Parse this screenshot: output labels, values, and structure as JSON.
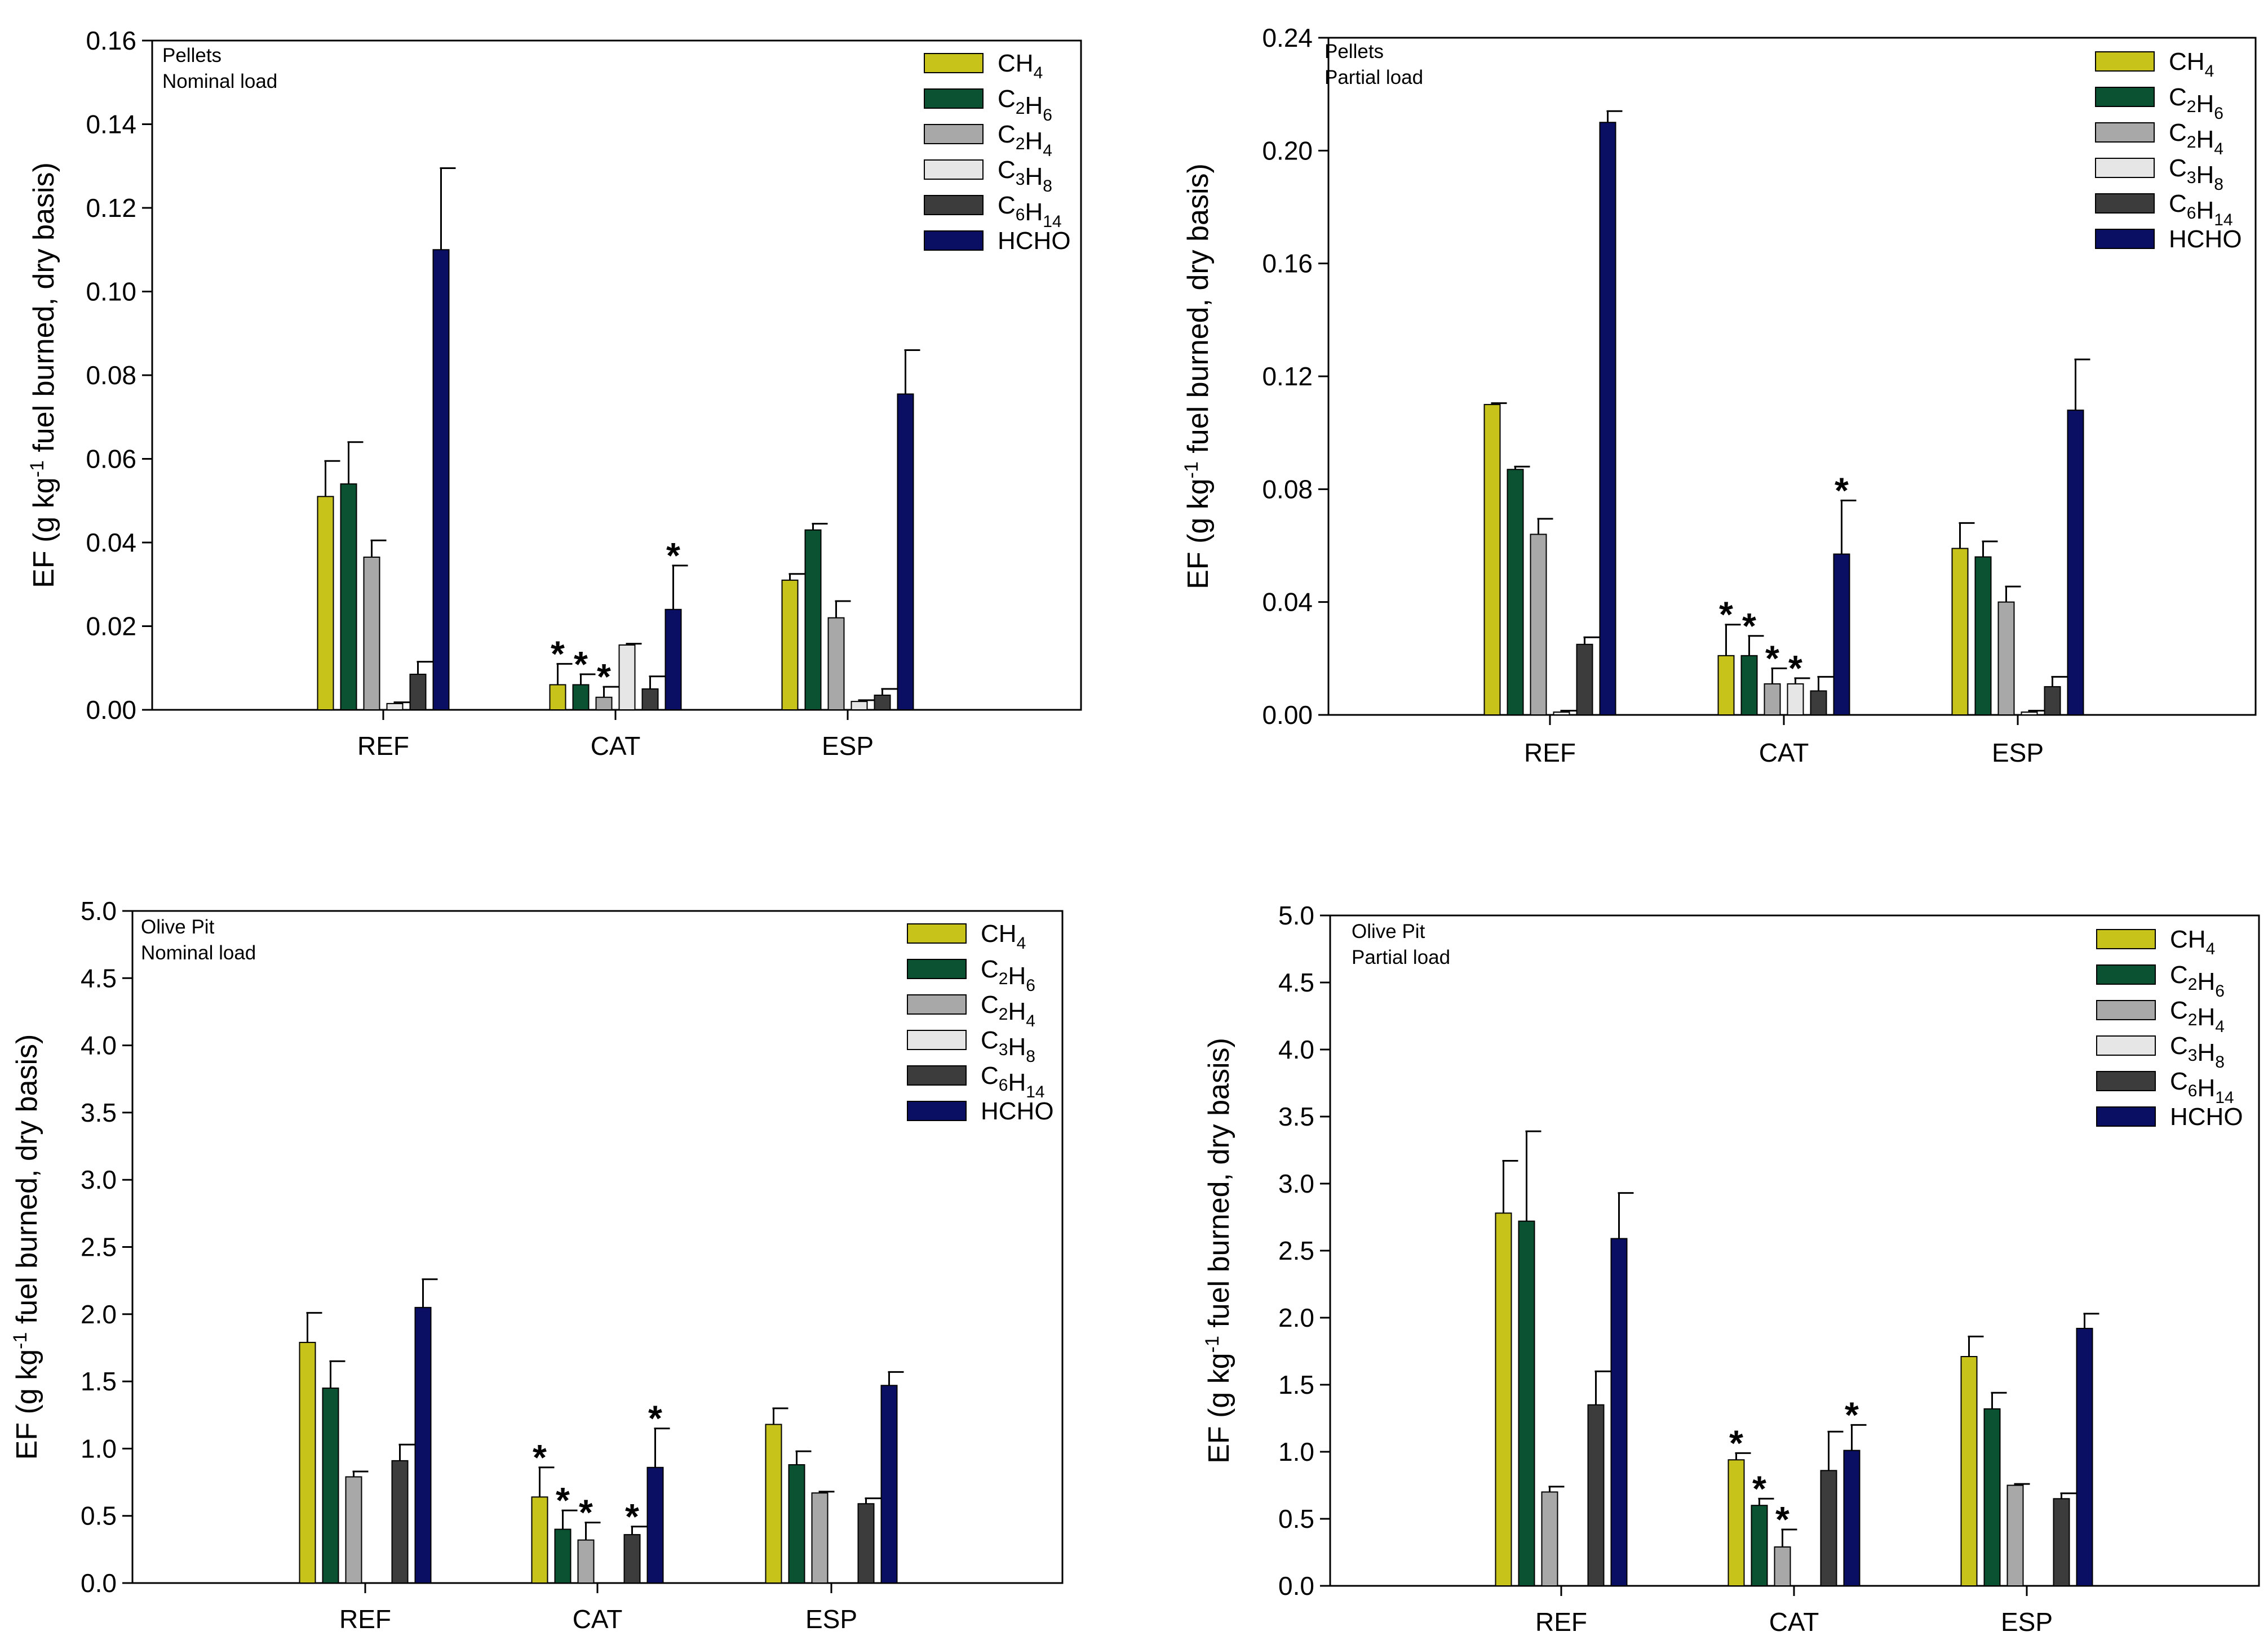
{
  "chart_data": [
    {
      "type": "bar",
      "title": "",
      "annotation": [
        "Pellets",
        "Nominal load"
      ],
      "ylabel": "EF (g kg-1 fuel burned, dry basis)",
      "ylim": [
        0,
        0.16
      ],
      "yticks": [
        0.0,
        0.02,
        0.04,
        0.06,
        0.08,
        0.1,
        0.12,
        0.14,
        0.16
      ],
      "ytick_labels": [
        "0.00",
        "0.02",
        "0.04",
        "0.06",
        "0.08",
        "0.10",
        "0.12",
        "0.14",
        "0.16"
      ],
      "categories": [
        "REF",
        "CAT",
        "ESP"
      ],
      "series": [
        {
          "name": "CH4",
          "values": [
            0.051,
            0.006,
            0.031
          ],
          "errors": [
            0.0085,
            0.005,
            0.0015
          ],
          "significant": [
            false,
            true,
            false
          ]
        },
        {
          "name": "C2H6",
          "values": [
            0.054,
            0.006,
            0.043
          ],
          "errors": [
            0.01,
            0.0025,
            0.0015
          ],
          "significant": [
            false,
            true,
            false
          ]
        },
        {
          "name": "C2H4",
          "values": [
            0.0365,
            0.003,
            0.022
          ],
          "errors": [
            0.004,
            0.0025,
            0.004
          ],
          "significant": [
            false,
            true,
            false
          ]
        },
        {
          "name": "C3H8",
          "values": [
            0.0015,
            0.0155,
            0.002
          ],
          "errors": [
            0.0003,
            0.0003,
            0.0003
          ],
          "significant": [
            false,
            false,
            false
          ]
        },
        {
          "name": "C6H14",
          "values": [
            0.0085,
            0.005,
            0.0035
          ],
          "errors": [
            0.003,
            0.003,
            0.0015
          ],
          "significant": [
            false,
            false,
            false
          ]
        },
        {
          "name": "HCHO",
          "values": [
            0.11,
            0.024,
            0.0755
          ],
          "errors": [
            0.0195,
            0.0105,
            0.0105
          ],
          "significant": [
            false,
            true,
            false
          ]
        }
      ]
    },
    {
      "type": "bar",
      "title": "",
      "annotation": [
        "Pellets",
        "Partial load"
      ],
      "ylabel": "EF (g kg-1 fuel burned, dry basis)",
      "ylim": [
        0,
        0.24
      ],
      "yticks": [
        0.0,
        0.04,
        0.08,
        0.12,
        0.16,
        0.2,
        0.24
      ],
      "ytick_labels": [
        "0.00",
        "0.04",
        "0.08",
        "0.12",
        "0.16",
        "0.20",
        "0.24"
      ],
      "categories": [
        "REF",
        "CAT",
        "ESP"
      ],
      "series": [
        {
          "name": "CH4",
          "values": [
            0.11,
            0.021,
            0.059
          ],
          "errors": [
            0.0005,
            0.011,
            0.009
          ],
          "significant": [
            false,
            true,
            false
          ]
        },
        {
          "name": "C2H6",
          "values": [
            0.087,
            0.021,
            0.056
          ],
          "errors": [
            0.001,
            0.007,
            0.0055
          ],
          "significant": [
            false,
            true,
            false
          ]
        },
        {
          "name": "C2H4",
          "values": [
            0.064,
            0.011,
            0.04
          ],
          "errors": [
            0.0055,
            0.0055,
            0.0055
          ],
          "significant": [
            false,
            true,
            false
          ]
        },
        {
          "name": "C3H8",
          "values": [
            0.001,
            0.011,
            0.001
          ],
          "errors": [
            0.0005,
            0.002,
            0.0005
          ],
          "significant": [
            false,
            true,
            false
          ]
        },
        {
          "name": "C6H14",
          "values": [
            0.025,
            0.0085,
            0.01
          ],
          "errors": [
            0.0025,
            0.005,
            0.0035
          ],
          "significant": [
            false,
            false,
            false
          ]
        },
        {
          "name": "HCHO",
          "values": [
            0.21,
            0.057,
            0.108
          ],
          "errors": [
            0.004,
            0.019,
            0.018
          ],
          "significant": [
            false,
            true,
            false
          ]
        }
      ]
    },
    {
      "type": "bar",
      "title": "",
      "annotation": [
        "Olive Pit",
        "Nominal load"
      ],
      "ylabel": "EF (g kg-1 fuel burned, dry basis)",
      "ylim": [
        0,
        5.0
      ],
      "yticks": [
        0.0,
        0.5,
        1.0,
        1.5,
        2.0,
        2.5,
        3.0,
        3.5,
        4.0,
        4.5,
        5.0
      ],
      "ytick_labels": [
        "0.0",
        "0.5",
        "1.0",
        "1.5",
        "2.0",
        "2.5",
        "3.0",
        "3.5",
        "4.0",
        "4.5",
        "5.0"
      ],
      "categories": [
        "REF",
        "CAT",
        "ESP"
      ],
      "series": [
        {
          "name": "CH4",
          "values": [
            1.79,
            0.64,
            1.18
          ],
          "errors": [
            0.22,
            0.22,
            0.12
          ],
          "significant": [
            false,
            true,
            false
          ]
        },
        {
          "name": "C2H6",
          "values": [
            1.45,
            0.4,
            0.88
          ],
          "errors": [
            0.2,
            0.14,
            0.1
          ],
          "significant": [
            false,
            true,
            false
          ]
        },
        {
          "name": "C2H4",
          "values": [
            0.79,
            0.32,
            0.67
          ],
          "errors": [
            0.04,
            0.13,
            0.01
          ],
          "significant": [
            false,
            true,
            false
          ]
        },
        {
          "name": "C3H8",
          "values": [
            0.0,
            0.0,
            0.0
          ],
          "errors": [
            0.0,
            0.0,
            0.0
          ],
          "significant": [
            false,
            false,
            false
          ]
        },
        {
          "name": "C6H14",
          "values": [
            0.91,
            0.36,
            0.59
          ],
          "errors": [
            0.12,
            0.06,
            0.04
          ],
          "significant": [
            false,
            true,
            false
          ]
        },
        {
          "name": "HCHO",
          "values": [
            2.05,
            0.86,
            1.47
          ],
          "errors": [
            0.21,
            0.29,
            0.1
          ],
          "significant": [
            false,
            true,
            false
          ]
        }
      ]
    },
    {
      "type": "bar",
      "title": "",
      "annotation": [
        "Olive Pit",
        "Partial load"
      ],
      "ylabel": "EF (g kg-1 fuel burned, dry basis)",
      "ylim": [
        0,
        5.0
      ],
      "yticks": [
        0.0,
        0.5,
        1.0,
        1.5,
        2.0,
        2.5,
        3.0,
        3.5,
        4.0,
        4.5,
        5.0
      ],
      "ytick_labels": [
        "0.0",
        "0.5",
        "1.0",
        "1.5",
        "2.0",
        "2.5",
        "3.0",
        "3.5",
        "4.0",
        "4.5",
        "5.0"
      ],
      "categories": [
        "REF",
        "CAT",
        "ESP"
      ],
      "series": [
        {
          "name": "CH4",
          "values": [
            2.78,
            0.94,
            1.71
          ],
          "errors": [
            0.39,
            0.05,
            0.15
          ],
          "significant": [
            false,
            true,
            false
          ]
        },
        {
          "name": "C2H6",
          "values": [
            2.72,
            0.6,
            1.32
          ],
          "errors": [
            0.67,
            0.05,
            0.12
          ],
          "significant": [
            false,
            true,
            false
          ]
        },
        {
          "name": "C2H4",
          "values": [
            0.7,
            0.29,
            0.75
          ],
          "errors": [
            0.04,
            0.13,
            0.01
          ],
          "significant": [
            false,
            true,
            false
          ]
        },
        {
          "name": "C3H8",
          "values": [
            0.0,
            0.0,
            0.0
          ],
          "errors": [
            0.0,
            0.0,
            0.0
          ],
          "significant": [
            false,
            false,
            false
          ]
        },
        {
          "name": "C6H14",
          "values": [
            1.35,
            0.86,
            0.65
          ],
          "errors": [
            0.25,
            0.29,
            0.04
          ],
          "significant": [
            false,
            false,
            false
          ]
        },
        {
          "name": "HCHO",
          "values": [
            2.59,
            1.01,
            1.92
          ],
          "errors": [
            0.34,
            0.19,
            0.11
          ],
          "significant": [
            false,
            true,
            false
          ]
        }
      ]
    }
  ],
  "legend": {
    "entries": [
      {
        "key": "CH4",
        "parts": [
          [
            "C",
            ""
          ],
          [
            "H",
            "4"
          ]
        ],
        "color": "#c8c31b"
      },
      {
        "key": "C2H6",
        "parts": [
          [
            "C",
            "2"
          ],
          [
            "H",
            "6"
          ]
        ],
        "color": "#0b5233"
      },
      {
        "key": "C2H4",
        "parts": [
          [
            "C",
            "2"
          ],
          [
            "H",
            "4"
          ]
        ],
        "color": "#a8a8a8"
      },
      {
        "key": "C3H8",
        "parts": [
          [
            "C",
            "3"
          ],
          [
            "H",
            "8"
          ]
        ],
        "color": "#e6e6e6"
      },
      {
        "key": "C6H14",
        "parts": [
          [
            "C",
            "6"
          ],
          [
            "H",
            "14"
          ]
        ],
        "color": "#3c3c3c"
      },
      {
        "key": "HCHO",
        "parts": [
          [
            "HCHO",
            ""
          ]
        ],
        "color": "#0a0f63"
      }
    ]
  },
  "ylabel_parts": {
    "before": "EF (g kg",
    "sup": "-1",
    "after": " fuel burned, dry basis)"
  },
  "significance_marker": "*"
}
